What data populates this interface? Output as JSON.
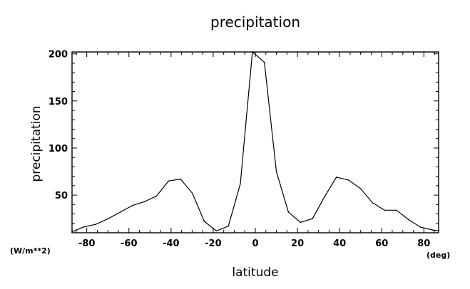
{
  "chart_data": {
    "type": "line",
    "title": "precipitation",
    "xlabel": "latitude",
    "ylabel": "precipitation",
    "x_unit": "(deg)",
    "y_unit": "(W/m**2)",
    "xlim": [
      -87,
      87
    ],
    "ylim": [
      10,
      202
    ],
    "x_ticks": [
      -80,
      -60,
      -40,
      -20,
      0,
      20,
      40,
      60,
      80
    ],
    "x_tick_labels": [
      "-80",
      "-60",
      "-40",
      "-20",
      "0",
      "20",
      "40",
      "60",
      "80"
    ],
    "y_ticks": [
      50,
      100,
      150,
      200
    ],
    "y_tick_labels": [
      "50",
      "100",
      "150",
      "200"
    ],
    "grid": false,
    "series": [
      {
        "x": [
          -87,
          -81.7,
          -75.7,
          -69.8,
          -64,
          -58.3,
          -52.6,
          -46.9,
          -41.2,
          -35.5,
          -29.9,
          -24.2,
          -18.5,
          -12.8,
          -7.1,
          -1.4,
          4.3,
          10,
          15.7,
          21.4,
          27.1,
          32.8,
          38.5,
          44.2,
          49.9,
          55.6,
          61.3,
          67,
          72.7,
          78.4,
          84.1,
          87
        ],
        "y": [
          11,
          16,
          19,
          25,
          32,
          39,
          43,
          49,
          65,
          67,
          52,
          22,
          12,
          17,
          62,
          202,
          191,
          75,
          32,
          21,
          25,
          48,
          69,
          66,
          57,
          42,
          34,
          34,
          24,
          16,
          13,
          12
        ]
      }
    ]
  }
}
